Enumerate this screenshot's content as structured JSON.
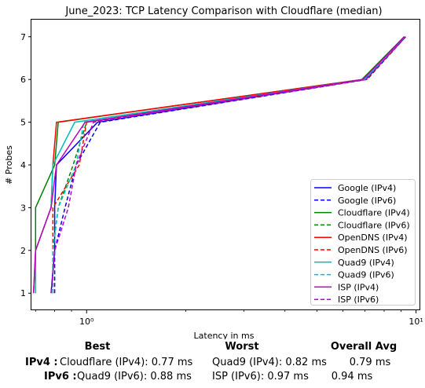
{
  "chart_data": {
    "type": "line",
    "title": "June_2023: TCP Latency Comparison with Cloudflare (median)",
    "xlabel": "Latency in ms",
    "ylabel": "# Probes",
    "xscale": "log",
    "xlim": [
      0.68,
      10.3
    ],
    "ylim": [
      0.6,
      7.4
    ],
    "xticks": [
      {
        "value": 1,
        "label": "10⁰"
      },
      {
        "value": 10,
        "label": "10¹"
      }
    ],
    "yticks": [
      1,
      2,
      3,
      4,
      5,
      6,
      7
    ],
    "grid": false,
    "legend_position": "lower-right",
    "series": [
      {
        "name": "Google (IPv4)",
        "color": "#0000ff",
        "dash": "solid",
        "x": [
          0.78,
          0.8,
          0.8,
          0.81,
          1.08,
          7.0,
          9.3
        ],
        "y": [
          1,
          2,
          3,
          4,
          5,
          6,
          7
        ]
      },
      {
        "name": "Google (IPv6)",
        "color": "#0000ff",
        "dash": "dashed",
        "x": [
          0.8,
          0.8,
          0.86,
          0.93,
          1.1,
          7.1,
          9.3
        ],
        "y": [
          1,
          2,
          3,
          4,
          5,
          6,
          7
        ]
      },
      {
        "name": "Cloudflare (IPv4)",
        "color": "#008000",
        "dash": "solid",
        "x": [
          0.7,
          0.7,
          0.7,
          0.8,
          0.82,
          6.85,
          9.2
        ],
        "y": [
          1,
          2,
          3,
          4,
          5,
          6,
          7
        ]
      },
      {
        "name": "Cloudflare (IPv6)",
        "color": "#008000",
        "dash": "dashed",
        "x": [
          0.79,
          0.79,
          0.82,
          0.91,
          1.0,
          6.95,
          9.25
        ],
        "y": [
          1,
          2,
          3,
          4,
          5,
          6,
          7
        ]
      },
      {
        "name": "OpenDNS (IPv4)",
        "color": "#ff0000",
        "dash": "solid",
        "x": [
          0.69,
          0.7,
          0.78,
          0.79,
          0.81,
          6.9,
          9.25
        ],
        "y": [
          1,
          2,
          3,
          4,
          5,
          6,
          7
        ]
      },
      {
        "name": "OpenDNS (IPv6)",
        "color": "#ff0000",
        "dash": "dashed",
        "x": [
          0.79,
          0.79,
          0.79,
          0.95,
          1.0,
          7.05,
          9.28
        ],
        "y": [
          1,
          2,
          3,
          4,
          5,
          6,
          7
        ]
      },
      {
        "name": "Quad9 (IPv4)",
        "color": "#00bfbf",
        "dash": "solid",
        "x": [
          0.7,
          0.7,
          0.78,
          0.79,
          0.92,
          6.95,
          9.25
        ],
        "y": [
          1,
          2,
          3,
          4,
          5,
          6,
          7
        ]
      },
      {
        "name": "Quad9 (IPv6)",
        "color": "#00bfbf",
        "dash": "dashed",
        "x": [
          0.79,
          0.79,
          0.82,
          0.93,
          0.98,
          7.0,
          9.25
        ],
        "y": [
          1,
          2,
          3,
          4,
          5,
          6,
          7
        ]
      },
      {
        "name": "ISP (IPv4)",
        "color": "#bf00bf",
        "dash": "solid",
        "x": [
          0.69,
          0.7,
          0.78,
          0.81,
          0.99,
          6.9,
          9.22
        ],
        "y": [
          1,
          2,
          3,
          4,
          5,
          6,
          7
        ]
      },
      {
        "name": "ISP (IPv6)",
        "color": "#bf00bf",
        "dash": "dashed",
        "x": [
          0.78,
          0.8,
          0.88,
          0.93,
          1.05,
          7.05,
          9.3
        ],
        "y": [
          1,
          2,
          3,
          4,
          5,
          6,
          7
        ]
      }
    ]
  },
  "summary": {
    "headers": {
      "best": "Best",
      "worst": "Worst",
      "avg": "Overall Avg"
    },
    "rows": [
      {
        "label": "IPv4 :",
        "best": "Cloudflare (IPv4): 0.77 ms",
        "worst": "Quad9 (IPv4): 0.82 ms",
        "avg": "0.79 ms"
      },
      {
        "label": "IPv6 :",
        "best": "Quad9 (IPv6): 0.88 ms",
        "worst": "ISP (IPv6): 0.97 ms",
        "avg": "0.94 ms"
      }
    ]
  }
}
